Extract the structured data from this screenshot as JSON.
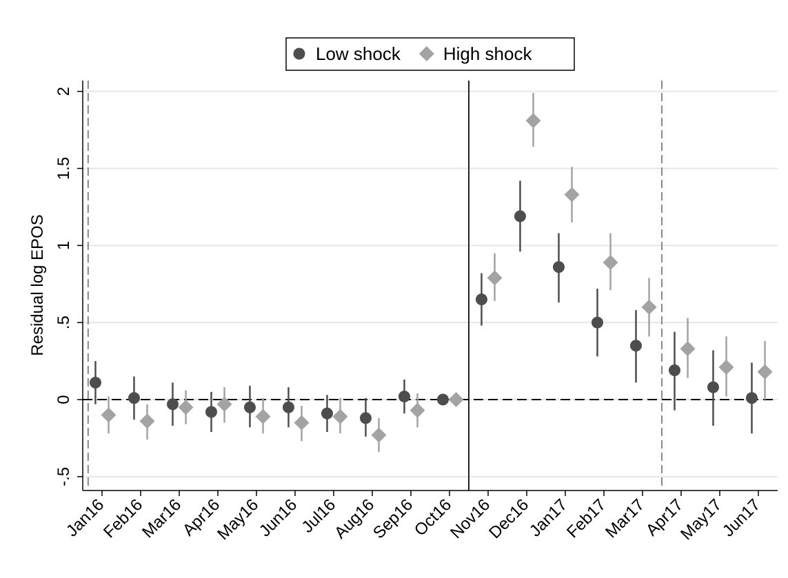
{
  "chart_data": {
    "type": "coefplot",
    "y_label": "Residual log EPOS",
    "categories": [
      "Jan16",
      "Feb16",
      "Mar16",
      "Apr16",
      "May16",
      "Jun16",
      "Jul16",
      "Aug16",
      "Sep16",
      "Oct16",
      "Nov16",
      "Dec16",
      "Jan17",
      "Feb17",
      "Mar17",
      "Apr17",
      "May17",
      "Jun17"
    ],
    "series": [
      {
        "name": "Low shock",
        "color": "#4d4d4d",
        "marker": "circle",
        "values": [
          0.11,
          0.01,
          -0.03,
          -0.08,
          -0.05,
          -0.05,
          -0.09,
          -0.12,
          0.02,
          0,
          0.65,
          1.19,
          0.86,
          0.5,
          0.35,
          0.19,
          0.08,
          0.01
        ],
        "ci_low": [
          -0.03,
          -0.13,
          -0.17,
          -0.21,
          -0.18,
          -0.18,
          -0.21,
          -0.24,
          -0.09,
          null,
          0.48,
          0.96,
          0.63,
          0.28,
          0.11,
          -0.07,
          -0.17,
          -0.22
        ],
        "ci_high": [
          0.25,
          0.15,
          0.11,
          0.05,
          0.09,
          0.08,
          0.03,
          0.01,
          0.13,
          null,
          0.82,
          1.42,
          1.08,
          0.72,
          0.58,
          0.44,
          0.32,
          0.24
        ]
      },
      {
        "name": "High shock",
        "color": "#a3a3a3",
        "marker": "diamond",
        "values": [
          -0.1,
          -0.14,
          -0.05,
          -0.03,
          -0.11,
          -0.15,
          -0.11,
          -0.23,
          -0.07,
          0,
          0.79,
          1.81,
          1.33,
          0.89,
          0.6,
          0.33,
          0.21,
          0.18
        ],
        "ci_low": [
          -0.22,
          -0.26,
          -0.16,
          -0.15,
          -0.22,
          -0.27,
          -0.22,
          -0.34,
          -0.18,
          null,
          0.64,
          1.64,
          1.15,
          0.71,
          0.41,
          0.14,
          0.02,
          0.0
        ],
        "ci_high": [
          0.02,
          -0.03,
          0.06,
          0.08,
          0.01,
          -0.04,
          0.01,
          -0.12,
          0.04,
          null,
          0.95,
          1.99,
          1.51,
          1.08,
          0.79,
          0.53,
          0.41,
          0.38
        ]
      }
    ],
    "ylim": [
      -0.59,
      2.07
    ],
    "yticks": [
      {
        "value": -0.5,
        "label": "-.5"
      },
      0,
      {
        "value": 0.5,
        "label": ".5"
      },
      1,
      1.5,
      2
    ],
    "grid": true,
    "hline": {
      "y": 0,
      "style": "dashed"
    },
    "vlines": [
      {
        "x": -0.36,
        "style": "dashed"
      },
      {
        "x": 9.5,
        "style": "solid"
      },
      {
        "x": 14.5,
        "style": "dashed"
      }
    ],
    "legend": "top"
  }
}
